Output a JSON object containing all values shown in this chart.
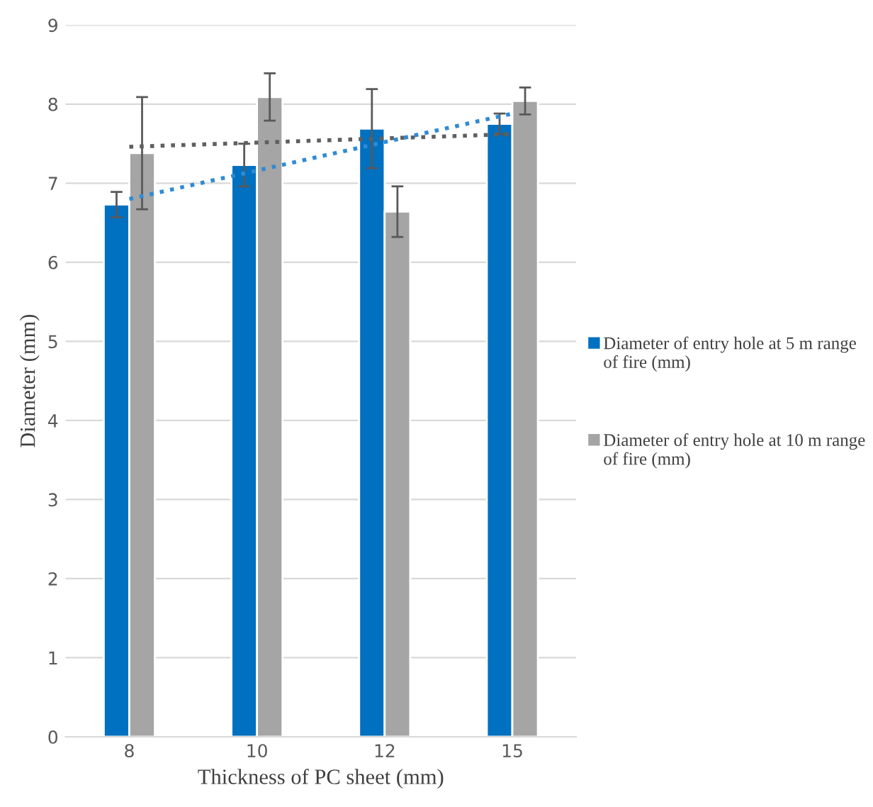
{
  "chart_data": {
    "type": "bar",
    "xlabel": "Thickness of PC sheet (mm)",
    "ylabel": "Diameter (mm)",
    "categories": [
      "8",
      "10",
      "12",
      "15"
    ],
    "series": [
      {
        "name": "Diameter of entry hole at 5 m range of fire (mm)",
        "color": "#0070c0",
        "values": [
          6.73,
          7.23,
          7.69,
          7.75
        ],
        "errors": [
          0.16,
          0.27,
          0.5,
          0.13
        ]
      },
      {
        "name": "Diameter of entry hole at 10 m range of fire (mm)",
        "color": "#a5a5a5",
        "values": [
          7.38,
          8.09,
          6.64,
          8.04
        ],
        "errors": [
          0.71,
          0.3,
          0.32,
          0.17
        ]
      },
      {
        "type": "line",
        "color": "#2e8bd6",
        "line_style": "dotted",
        "x": [
          "8",
          "15"
        ],
        "values": [
          6.8,
          7.88
        ]
      },
      {
        "type": "line",
        "color": "#5f5f5f",
        "line_style": "dotted",
        "x": [
          "8",
          "15"
        ],
        "values": [
          7.46,
          7.62
        ]
      }
    ],
    "ylim": [
      0,
      9
    ],
    "yticks": [
      0,
      1,
      2,
      3,
      4,
      5,
      6,
      7,
      8,
      9
    ],
    "grid": "y",
    "legend": "right"
  }
}
